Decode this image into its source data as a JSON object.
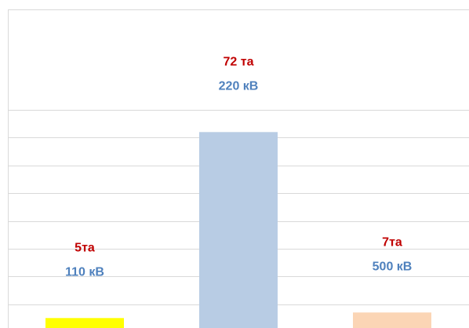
{
  "chart_data": {
    "type": "bar",
    "categories": [
      "110 кВ",
      "220 кВ",
      "500 кВ"
    ],
    "values": [
      5,
      72,
      7
    ],
    "value_labels": [
      "5та",
      "72 та",
      "7та"
    ],
    "colors": [
      "#ffff00",
      "#b8cce4",
      "#fbd5b5"
    ],
    "ylim": [
      0,
      80
    ],
    "yticks": [
      0,
      10,
      20,
      30,
      40,
      50,
      60,
      70,
      80
    ],
    "grid": true
  }
}
